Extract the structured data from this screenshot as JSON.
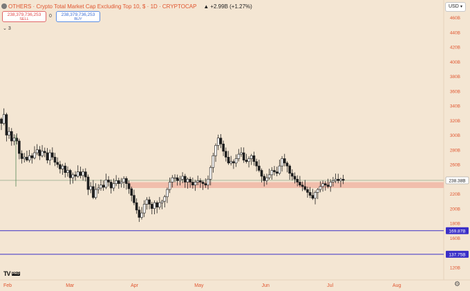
{
  "header": {
    "title": "OTHERS · Crypto Total Market Cap Excluding Top 10, $ · 1D · CRYPTOCAP",
    "change": "+2.99B (+1.27%)",
    "status_dot_color": "#7a7a7a",
    "title_color": "#e0552f"
  },
  "trade": {
    "sell_price": "238,379,736,253",
    "sell_label": "SELL",
    "spread": "0",
    "buy_price": "238,379,736,253",
    "buy_label": "BUY"
  },
  "indicators_toggle": {
    "count": "3",
    "icon": "chevron-down-icon"
  },
  "currency_select": {
    "value": "USD",
    "icon": "chevron-down-icon"
  },
  "brand": {
    "logo_text": "TV",
    "badge": "PRO"
  },
  "settings": {
    "icon": "gear-icon"
  },
  "colors": {
    "background": "#f4e6d3",
    "candle_up": "#ffffff",
    "candle_down": "#1e1e1e",
    "zone": "#f0b6a4",
    "support_lines": "#3a2fc8",
    "price_line": "#7a9a7a",
    "axis_text": "#e0552f"
  },
  "chart_data": {
    "type": "candlestick",
    "symbol": "OTHERS",
    "interval": "1D",
    "y_ticks": [
      "460B",
      "440B",
      "420B",
      "400B",
      "380B",
      "360B",
      "340B",
      "320B",
      "300B",
      "280B",
      "260B",
      "220B",
      "200B",
      "180B",
      "160B",
      "120B"
    ],
    "y_tick_values": [
      460,
      440,
      420,
      400,
      380,
      360,
      340,
      320,
      300,
      280,
      260,
      220,
      200,
      180,
      160,
      120
    ],
    "x_ticks": [
      "Feb",
      "Mar",
      "Apr",
      "May",
      "Jun",
      "Jul",
      "Aug"
    ],
    "x_tick_days": [
      0,
      29,
      59,
      89,
      120,
      150,
      181
    ],
    "current_price": {
      "label": "238.38B",
      "value": 238.38
    },
    "horizontal_lines": [
      {
        "label": "169.87B",
        "value": 169.87
      },
      {
        "label": "137.75B",
        "value": 137.75
      }
    ],
    "zone": {
      "from": 228,
      "to": 236
    },
    "close_series": [
      316,
      328,
      300,
      305,
      292,
      296,
      292,
      275,
      268,
      270,
      266,
      272,
      269,
      276,
      280,
      272,
      278,
      276,
      266,
      276,
      270,
      263,
      260,
      254,
      258,
      249,
      252,
      242,
      246,
      244,
      250,
      245,
      250,
      243,
      226,
      230,
      215,
      226,
      228,
      232,
      229,
      239,
      236,
      228,
      234,
      238,
      234,
      236,
      241,
      234,
      227,
      218,
      208,
      198,
      188,
      194,
      206,
      212,
      206,
      200,
      208,
      202,
      208,
      210,
      216,
      226,
      236,
      242,
      242,
      238,
      240,
      244,
      236,
      240,
      236,
      232,
      236,
      238,
      236,
      234,
      232,
      240,
      256,
      272,
      286,
      296,
      288,
      278,
      270,
      262,
      264,
      262,
      268,
      274,
      276,
      266,
      264,
      268,
      272,
      264,
      258,
      252,
      244,
      238,
      242,
      246,
      252,
      250,
      248,
      258,
      268,
      262,
      258,
      248,
      244,
      240,
      236,
      232,
      230,
      226,
      222,
      218,
      214,
      222,
      226,
      230,
      234,
      232,
      230,
      236,
      238,
      240,
      238,
      240,
      238.38
    ]
  }
}
